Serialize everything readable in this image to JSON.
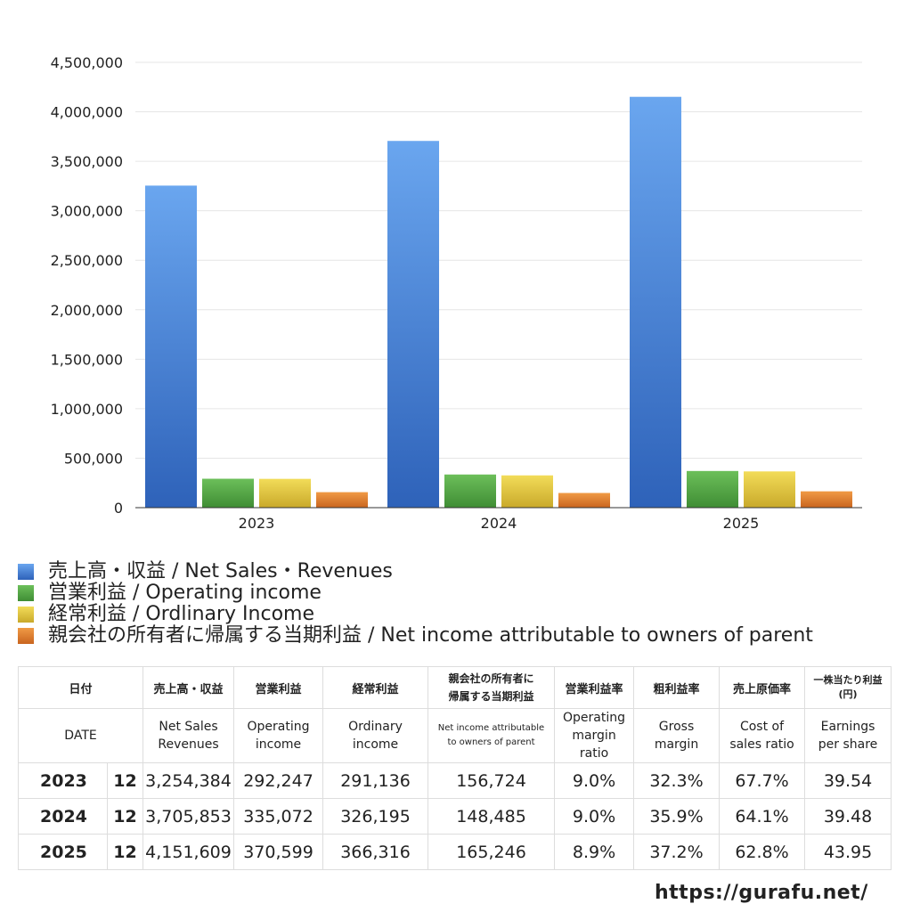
{
  "chart_data": {
    "type": "bar",
    "categories": [
      "2023",
      "2024",
      "2025"
    ],
    "ylim": [
      0,
      4500000
    ],
    "yticks": [
      0,
      500000,
      1000000,
      1500000,
      2000000,
      2500000,
      3000000,
      3500000,
      4000000,
      4500000
    ],
    "ytick_labels": [
      "0",
      "500,000",
      "1,000,000",
      "1,500,000",
      "2,000,000",
      "2,500,000",
      "3,000,000",
      "3,500,000",
      "4,000,000",
      "4,500,000"
    ],
    "grid": true,
    "legend_position": "bottom",
    "series": [
      {
        "name": "売上高・収益 / Net Sales・Revenues",
        "color_top": "#6aa6ef",
        "color_bottom": "#2e62b9",
        "color": "#3d7bd6",
        "values": [
          3254384,
          3705853,
          4151609
        ]
      },
      {
        "name": "営業利益 / Operating income",
        "color_top": "#6cbf5a",
        "color_bottom": "#3f8d34",
        "color": "#4ea443",
        "values": [
          292247,
          335072,
          370599
        ]
      },
      {
        "name": "経常利益 / Ordlinary Income",
        "color_top": "#f2dc59",
        "color_bottom": "#c9a92a",
        "color": "#e0c23c",
        "values": [
          291136,
          326195,
          366316
        ]
      },
      {
        "name": "親会社の所有者に帰属する当期利益 / Net income attributable to owners of parent",
        "color_top": "#f09a45",
        "color_bottom": "#c9651f",
        "color": "#e07f2c",
        "values": [
          156724,
          148485,
          165246
        ]
      }
    ]
  },
  "table": {
    "headers_jp": [
      "日付",
      "売上高・収益",
      "営業利益",
      "経常利益",
      "親会社の所有者に帰属する当期利益",
      "営業利益率",
      "粗利益率",
      "売上原価率",
      "一株当たり利益(円)"
    ],
    "headers_jp_lines": {
      "net_income_1": "親会社の所有者に",
      "net_income_2": "帰属する当期利益",
      "eps_1": "一株当たり利益",
      "eps_2": "(円)"
    },
    "headers_en": {
      "date": "DATE",
      "sales_1": "Net Sales",
      "sales_2": "Revenues",
      "op_1": "Operating",
      "op_2": "income",
      "ord_1": "Ordinary",
      "ord_2": "income",
      "ni_1": "Net income attributable",
      "ni_2": "to owners of parent",
      "opm_1": "Operating",
      "opm_2": "margin",
      "opm_3": "ratio",
      "gm_1": "Gross",
      "gm_2": "margin",
      "cost_1": "Cost of",
      "cost_2": "sales ratio",
      "eps_1": "Earnings",
      "eps_2": "per share"
    },
    "rows": [
      {
        "year": "2023",
        "month": "12",
        "sales": "3,254,384",
        "op": "292,247",
        "ord": "291,136",
        "ni": "156,724",
        "opm": "9.0%",
        "gm": "32.3%",
        "cost": "67.7%",
        "eps": "39.54"
      },
      {
        "year": "2024",
        "month": "12",
        "sales": "3,705,853",
        "op": "335,072",
        "ord": "326,195",
        "ni": "148,485",
        "opm": "9.0%",
        "gm": "35.9%",
        "cost": "64.1%",
        "eps": "39.48"
      },
      {
        "year": "2025",
        "month": "12",
        "sales": "4,151,609",
        "op": "370,599",
        "ord": "366,316",
        "ni": "165,246",
        "opm": "8.9%",
        "gm": "37.2%",
        "cost": "62.8%",
        "eps": "43.95"
      }
    ]
  },
  "footer": {
    "url": "https://gurafu.net/"
  }
}
